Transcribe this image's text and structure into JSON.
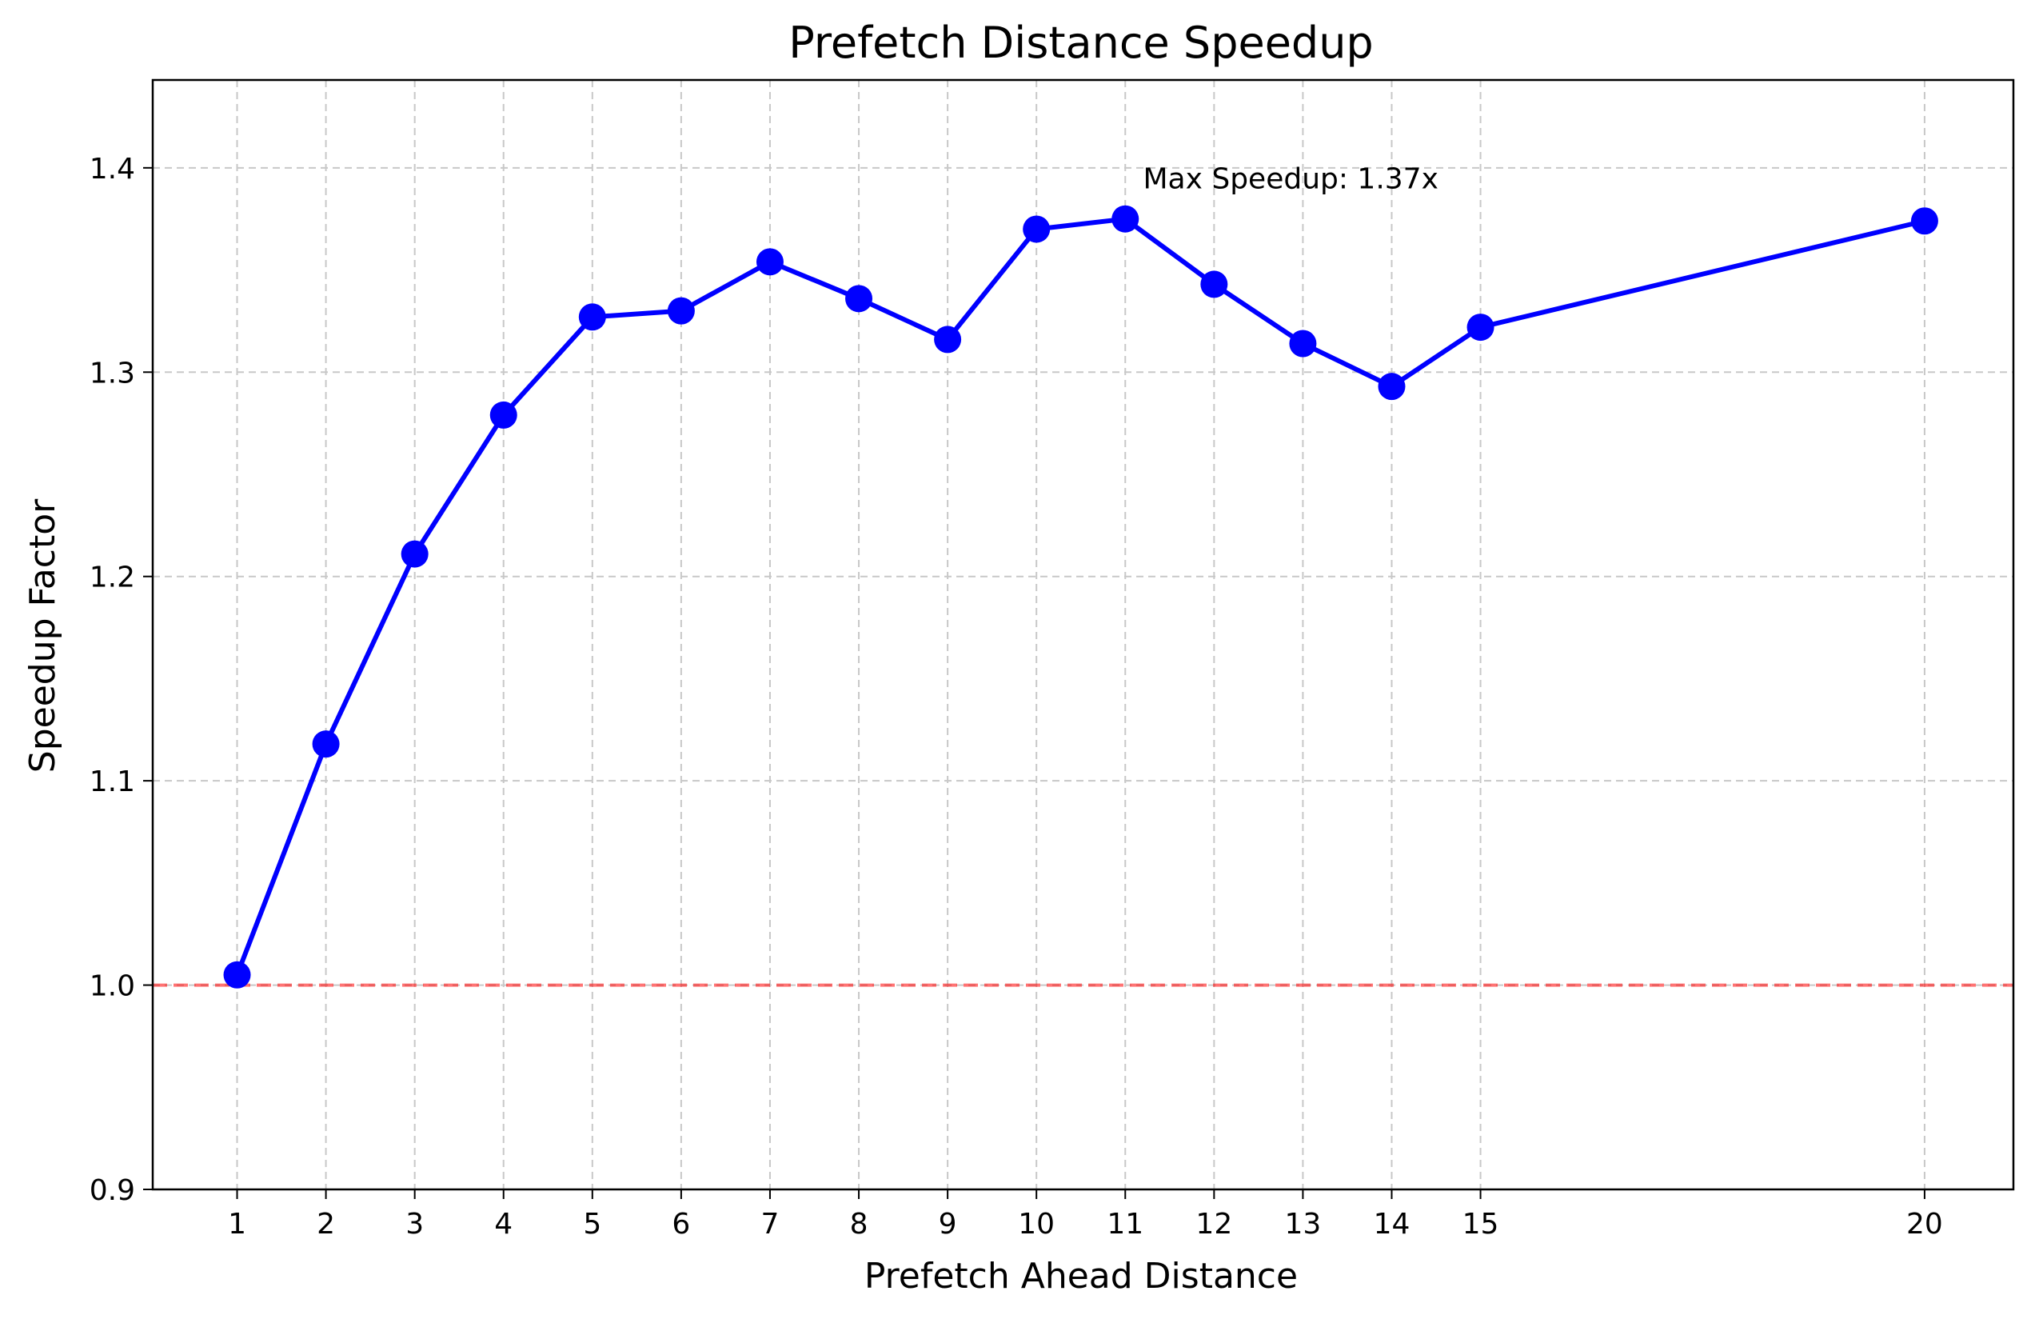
{
  "chart_data": {
    "type": "line",
    "title": "Prefetch Distance Speedup",
    "xlabel": "Prefetch Ahead Distance",
    "ylabel": "Speedup Factor",
    "xlim": [
      0.05,
      21.0
    ],
    "ylim": [
      0.9,
      1.443
    ],
    "x_ticks": [
      1,
      2,
      3,
      4,
      5,
      6,
      7,
      8,
      9,
      10,
      11,
      12,
      13,
      14,
      15,
      20
    ],
    "y_ticks": [
      0.9,
      1.0,
      1.1,
      1.2,
      1.3,
      1.4
    ],
    "y_tick_labels": [
      "0.9",
      "1.0",
      "1.1",
      "1.2",
      "1.3",
      "1.4"
    ],
    "grid": true,
    "series": [
      {
        "color": "#0000ff",
        "marker": "circle",
        "x": [
          1,
          2,
          3,
          4,
          5,
          6,
          7,
          8,
          9,
          10,
          11,
          12,
          13,
          14,
          15,
          20
        ],
        "y": [
          1.005,
          1.118,
          1.211,
          1.279,
          1.327,
          1.33,
          1.354,
          1.336,
          1.316,
          1.37,
          1.375,
          1.343,
          1.314,
          1.293,
          1.322,
          1.374
        ]
      }
    ],
    "reference_line": {
      "y": 1.0,
      "color": "#ff0000",
      "style": "dashed"
    },
    "annotation": {
      "text": "Max Speedup: 1.37x",
      "x": 11.2,
      "y": 1.395
    }
  }
}
